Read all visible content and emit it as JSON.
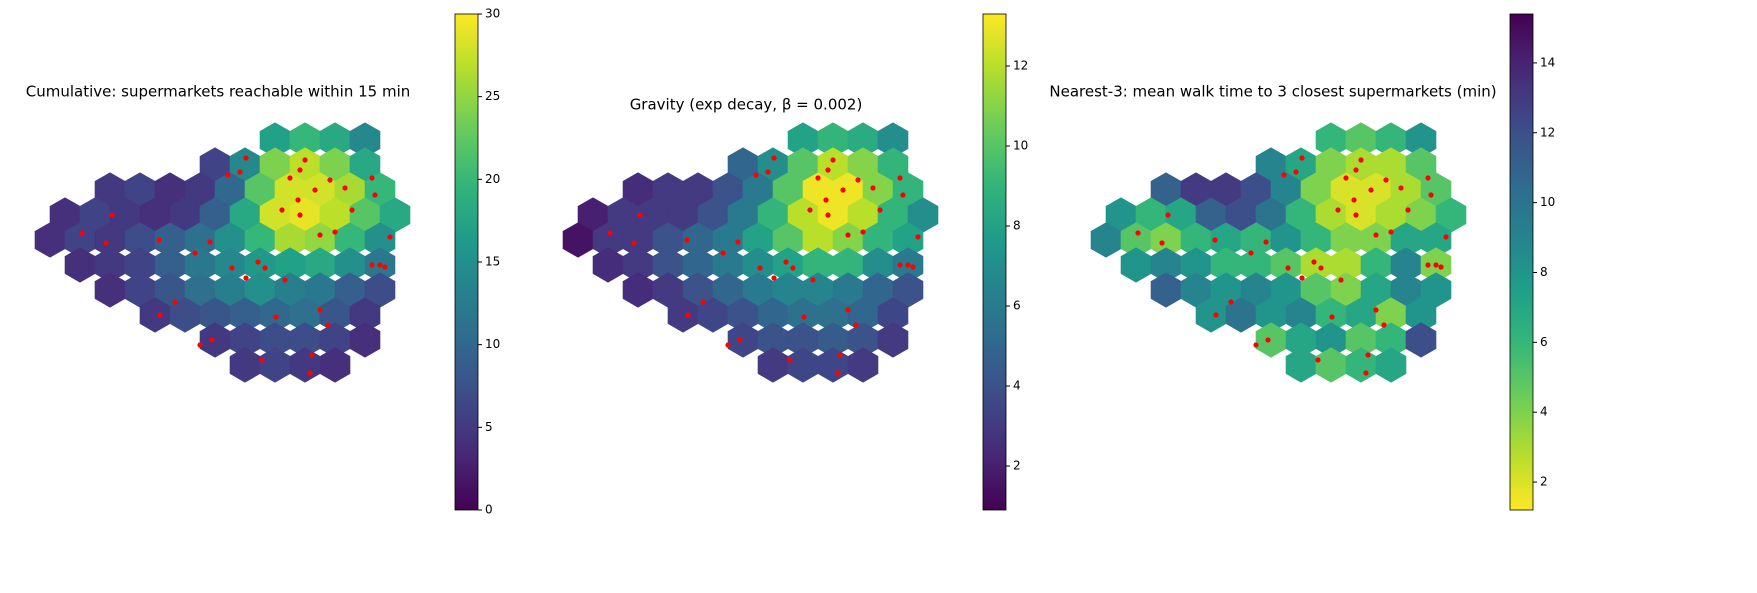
{
  "chart_data": [
    {
      "type": "hexmap",
      "title": "Cumulative: supermarkets reachable within 15 min",
      "colormap": "viridis",
      "clim": [
        0,
        30
      ],
      "cticks": [
        0,
        5,
        10,
        15,
        20,
        25,
        30
      ],
      "point_color": "#ff0000",
      "values": [
        17,
        20,
        18,
        14,
        6,
        14,
        24,
        27,
        24,
        18,
        5,
        6,
        4,
        5,
        10,
        22,
        28,
        28,
        26,
        20,
        4,
        6,
        5,
        4,
        5,
        9,
        18,
        28,
        29,
        27,
        22,
        18,
        4,
        6,
        5,
        7,
        9,
        11,
        15,
        20,
        26,
        25,
        20,
        15,
        4,
        5,
        6,
        9,
        12,
        14,
        16,
        17,
        18,
        15,
        12,
        4,
        6,
        8,
        11,
        13,
        15,
        13,
        12,
        9,
        7,
        5,
        7,
        8,
        9,
        10,
        11,
        8,
        5,
        5,
        6,
        7,
        7,
        6,
        4,
        5,
        6,
        5,
        4
      ]
    },
    {
      "type": "hexmap",
      "title": "Gravity (exp decay, β = 0.002)",
      "colormap": "viridis",
      "clim": [
        0.9,
        13.3
      ],
      "cticks": [
        2,
        4,
        6,
        8,
        10,
        12
      ],
      "point_color": "#ff0000",
      "values": [
        8,
        9,
        8.5,
        7,
        5,
        7,
        10,
        12,
        11,
        9,
        2.5,
        3,
        3,
        4,
        6,
        10,
        13,
        13,
        11,
        9,
        2,
        3,
        3,
        3,
        4,
        6,
        9,
        12,
        13,
        12,
        9,
        7,
        1.5,
        3,
        3,
        4,
        5,
        6,
        8,
        10,
        12,
        11,
        9,
        8,
        2.5,
        3,
        4,
        5,
        6,
        7,
        8,
        9,
        9,
        7,
        6,
        2.5,
        3,
        4,
        5,
        6,
        6.5,
        6.5,
        6,
        5,
        4,
        3,
        3.5,
        4,
        5,
        5.5,
        5.5,
        5,
        3.5,
        3.5,
        4,
        4,
        4.5,
        4,
        3,
        3,
        3.5,
        3.5,
        3
      ]
    },
    {
      "type": "hexmap",
      "title": "Nearest-3: mean walk time to 3 closest supermarkets (min)",
      "colormap": "viridis_r",
      "clim": [
        1.2,
        15.4
      ],
      "cticks": [
        2,
        4,
        6,
        8,
        10,
        12,
        14
      ],
      "point_color": "#ff0000",
      "values": [
        6,
        5,
        6,
        8,
        9,
        7,
        4,
        3,
        3,
        5,
        11,
        13,
        13,
        12,
        9,
        4,
        2,
        2,
        3,
        5,
        8,
        6,
        7,
        11,
        12,
        10,
        6,
        3,
        2,
        3,
        4,
        6,
        9,
        5,
        4,
        6,
        7,
        6,
        8,
        6,
        4,
        4,
        7,
        7,
        8,
        9,
        8,
        6,
        6,
        5,
        3,
        3,
        6,
        9,
        4,
        11,
        9,
        8,
        9,
        8,
        5,
        4,
        7,
        9,
        8,
        8,
        10,
        8,
        9,
        6,
        7,
        4,
        8,
        5,
        7,
        8,
        5,
        6,
        12,
        7,
        5,
        6,
        7
      ]
    }
  ],
  "cells": {
    "x": [
      275,
      305,
      335,
      365,
      215,
      245,
      275,
      305,
      335,
      365,
      110,
      140,
      170,
      200,
      230,
      260,
      290,
      320,
      350,
      380,
      65,
      95,
      125,
      155,
      185,
      215,
      245,
      275,
      305,
      335,
      365,
      395,
      50,
      80,
      110,
      140,
      170,
      200,
      230,
      260,
      290,
      320,
      350,
      380,
      80,
      110,
      140,
      170,
      200,
      230,
      260,
      290,
      320,
      350,
      380,
      110,
      140,
      170,
      200,
      230,
      260,
      290,
      320,
      350,
      380,
      155,
      185,
      215,
      245,
      275,
      305,
      335,
      365,
      215,
      245,
      275,
      305,
      335,
      365,
      245,
      275,
      305,
      335
    ],
    "y": [
      140,
      140,
      140,
      140,
      165,
      165,
      165,
      165,
      165,
      165,
      190,
      190,
      190,
      190,
      190,
      190,
      190,
      190,
      190,
      190,
      215,
      215,
      215,
      215,
      215,
      215,
      215,
      215,
      215,
      215,
      215,
      215,
      240,
      240,
      240,
      240,
      240,
      240,
      240,
      240,
      240,
      240,
      240,
      240,
      265,
      265,
      265,
      265,
      265,
      265,
      265,
      265,
      265,
      265,
      265,
      290,
      290,
      290,
      290,
      290,
      290,
      290,
      290,
      290,
      290,
      315,
      315,
      315,
      315,
      315,
      315,
      315,
      315,
      340,
      340,
      340,
      340,
      340,
      340,
      365,
      365,
      365,
      365
    ]
  },
  "supermarkets": {
    "x": [
      305,
      300,
      315,
      330,
      345,
      290,
      282,
      298,
      320,
      335,
      372,
      375,
      352,
      390,
      300,
      240,
      228,
      246,
      112,
      82,
      106,
      159,
      210,
      195,
      232,
      246,
      258,
      265,
      285,
      276,
      320,
      328,
      175,
      160,
      212,
      200,
      262,
      312,
      310,
      380,
      385,
      372
    ],
    "y": [
      160,
      170,
      190,
      180,
      188,
      178,
      210,
      200,
      235,
      232,
      178,
      195,
      210,
      237,
      215,
      172,
      175,
      158,
      215,
      233,
      243,
      240,
      242,
      253,
      268,
      278,
      262,
      268,
      280,
      317,
      310,
      325,
      302,
      315,
      340,
      345,
      360,
      355,
      373,
      265,
      267,
      265
    ]
  }
}
